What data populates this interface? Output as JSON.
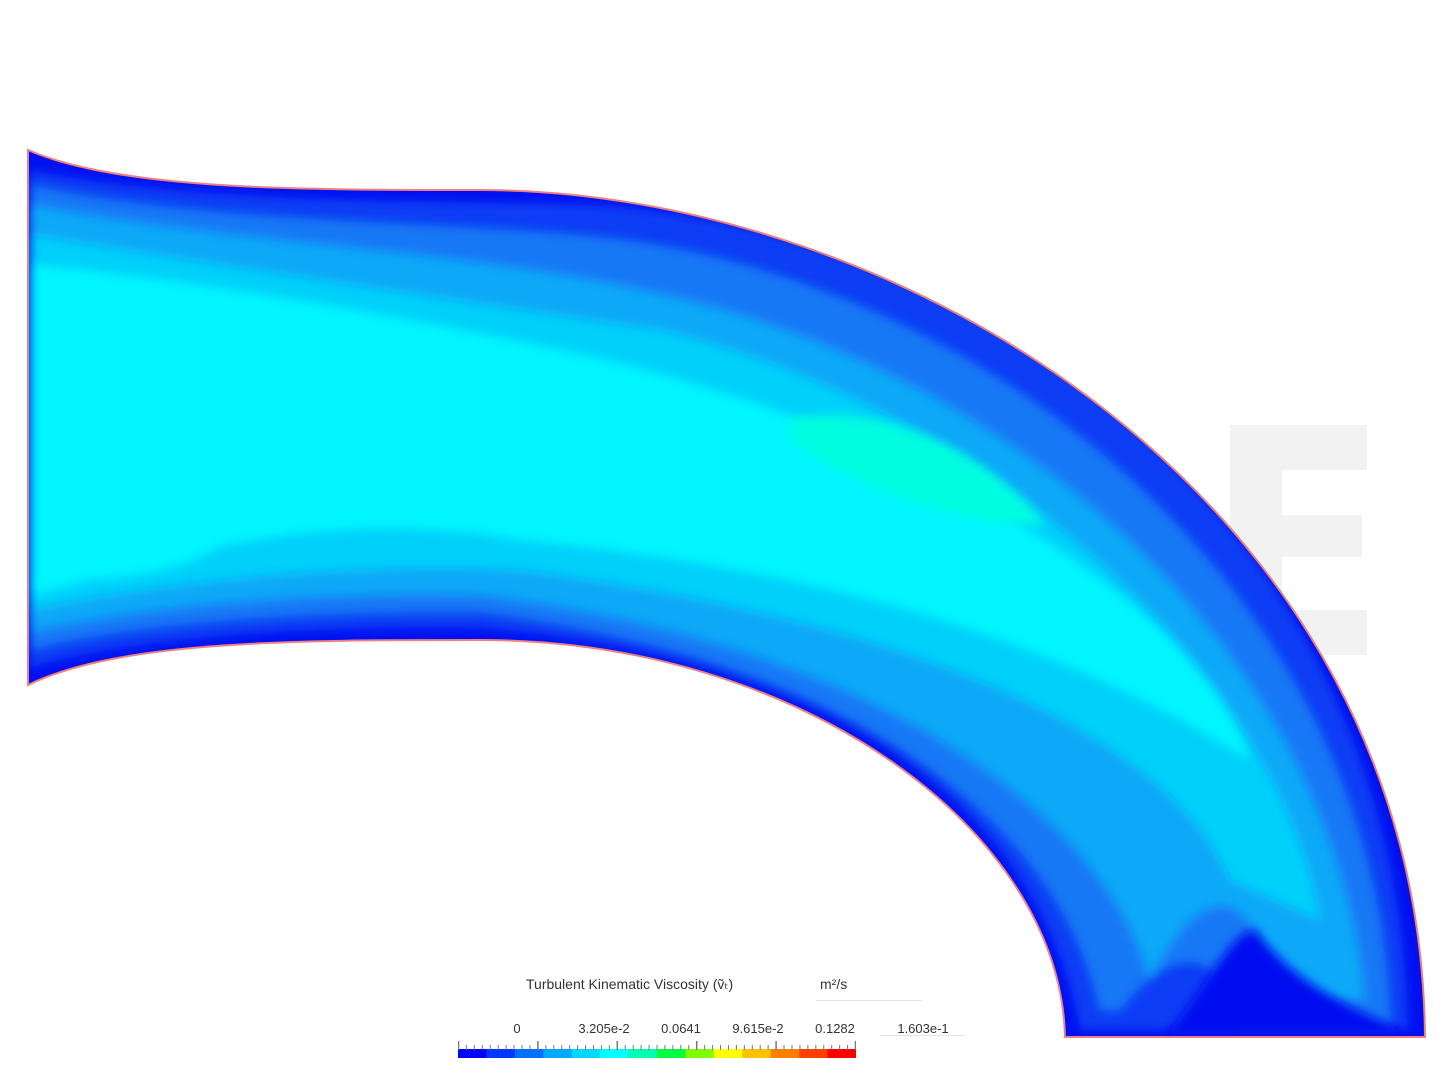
{
  "legend": {
    "title": "Turbulent Kinematic Viscosity (ṽₜ)",
    "units": "m²/s",
    "tick_labels": [
      "0",
      "3.205e-2",
      "0.0641",
      "9.615e-2",
      "0.1282",
      "1.603e-1"
    ],
    "range": [
      0,
      0.1603
    ],
    "colormap": [
      "#0000ff",
      "#0038ff",
      "#0070ff",
      "#00a8ff",
      "#00d8ff",
      "#00ffff",
      "#00ffb0",
      "#00ff40",
      "#80ff00",
      "#ffff00",
      "#ffc000",
      "#ff8000",
      "#ff4000",
      "#ff0000"
    ]
  },
  "field_colors": {
    "wall_outline": "#f08080",
    "band_0": "#0010f0",
    "band_1": "#0a3ef5",
    "band_2": "#1478f5",
    "band_3": "#0aa8f8",
    "band_4": "#00d0fa",
    "band_5": "#00f5fe",
    "band_6": "#00fde0"
  }
}
